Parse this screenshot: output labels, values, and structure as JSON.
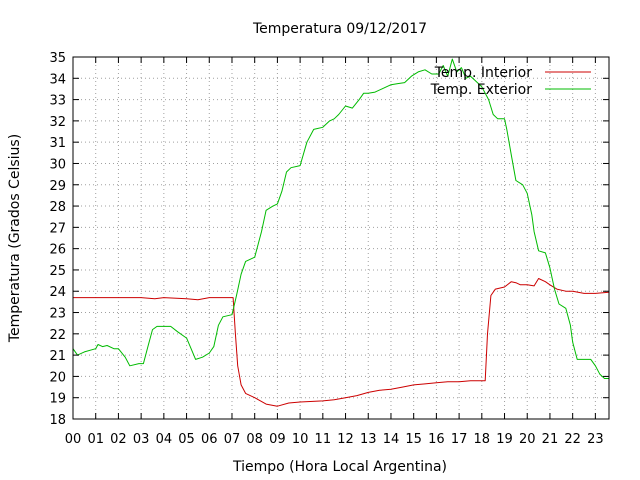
{
  "chart_data": {
    "type": "line",
    "title": "Temperatura 09/12/2017",
    "xlabel": "Tiempo (Hora Local Argentina)",
    "ylabel": "Temperatura (Grados Celsius)",
    "xlim": [
      0,
      23.6
    ],
    "ylim": [
      18,
      35
    ],
    "x_ticks": [
      "00",
      "01",
      "02",
      "03",
      "04",
      "05",
      "06",
      "07",
      "08",
      "09",
      "10",
      "11",
      "12",
      "13",
      "14",
      "15",
      "16",
      "17",
      "18",
      "19",
      "20",
      "21",
      "22",
      "23"
    ],
    "y_ticks": [
      18,
      19,
      20,
      21,
      22,
      23,
      24,
      25,
      26,
      27,
      28,
      29,
      30,
      31,
      32,
      33,
      34,
      35
    ],
    "grid": true,
    "legend_position": "top-right",
    "series": [
      {
        "name": "Temp. Interior",
        "color": "#cc0000",
        "points": [
          [
            0,
            23.7
          ],
          [
            1,
            23.7
          ],
          [
            2,
            23.7
          ],
          [
            3,
            23.7
          ],
          [
            3.6,
            23.65
          ],
          [
            4,
            23.7
          ],
          [
            5,
            23.65
          ],
          [
            5.5,
            23.6
          ],
          [
            6,
            23.7
          ],
          [
            6.5,
            23.7
          ],
          [
            7.05,
            23.7
          ],
          [
            7.15,
            22.0
          ],
          [
            7.25,
            20.5
          ],
          [
            7.4,
            19.6
          ],
          [
            7.6,
            19.2
          ],
          [
            8,
            19.0
          ],
          [
            8.5,
            18.7
          ],
          [
            9,
            18.6
          ],
          [
            9.5,
            18.75
          ],
          [
            10,
            18.8
          ],
          [
            11,
            18.85
          ],
          [
            11.5,
            18.9
          ],
          [
            12,
            19.0
          ],
          [
            12.5,
            19.1
          ],
          [
            13,
            19.25
          ],
          [
            13.5,
            19.35
          ],
          [
            14,
            19.4
          ],
          [
            14.5,
            19.5
          ],
          [
            15,
            19.6
          ],
          [
            15.5,
            19.65
          ],
          [
            16,
            19.7
          ],
          [
            16.5,
            19.75
          ],
          [
            17,
            19.75
          ],
          [
            17.5,
            19.8
          ],
          [
            18,
            19.8
          ],
          [
            18.15,
            19.8
          ],
          [
            18.25,
            22.0
          ],
          [
            18.4,
            23.8
          ],
          [
            18.6,
            24.1
          ],
          [
            19,
            24.2
          ],
          [
            19.3,
            24.45
          ],
          [
            19.5,
            24.4
          ],
          [
            19.7,
            24.3
          ],
          [
            20,
            24.3
          ],
          [
            20.3,
            24.25
          ],
          [
            20.5,
            24.6
          ],
          [
            20.8,
            24.45
          ],
          [
            21,
            24.3
          ],
          [
            21.3,
            24.1
          ],
          [
            21.7,
            24.0
          ],
          [
            22,
            24.0
          ],
          [
            22.5,
            23.9
          ],
          [
            23,
            23.9
          ],
          [
            23.6,
            23.95
          ]
        ]
      },
      {
        "name": "Temp. Exterior",
        "color": "#00bb00",
        "points": [
          [
            0,
            21.3
          ],
          [
            0.2,
            21.0
          ],
          [
            0.5,
            21.15
          ],
          [
            1,
            21.3
          ],
          [
            1.1,
            21.5
          ],
          [
            1.3,
            21.4
          ],
          [
            1.5,
            21.45
          ],
          [
            1.8,
            21.3
          ],
          [
            2,
            21.3
          ],
          [
            2.3,
            20.9
          ],
          [
            2.5,
            20.5
          ],
          [
            2.9,
            20.6
          ],
          [
            3.1,
            20.6
          ],
          [
            3.3,
            21.4
          ],
          [
            3.5,
            22.2
          ],
          [
            3.7,
            22.35
          ],
          [
            4,
            22.35
          ],
          [
            4.3,
            22.35
          ],
          [
            4.6,
            22.1
          ],
          [
            5,
            21.8
          ],
          [
            5.2,
            21.3
          ],
          [
            5.4,
            20.8
          ],
          [
            5.7,
            20.9
          ],
          [
            6,
            21.1
          ],
          [
            6.2,
            21.4
          ],
          [
            6.4,
            22.4
          ],
          [
            6.6,
            22.8
          ],
          [
            7,
            22.9
          ],
          [
            7.2,
            23.8
          ],
          [
            7.4,
            24.8
          ],
          [
            7.6,
            25.4
          ],
          [
            8,
            25.6
          ],
          [
            8.3,
            26.8
          ],
          [
            8.5,
            27.8
          ],
          [
            8.8,
            28.0
          ],
          [
            9,
            28.1
          ],
          [
            9.2,
            28.7
          ],
          [
            9.4,
            29.6
          ],
          [
            9.6,
            29.8
          ],
          [
            10,
            29.9
          ],
          [
            10.3,
            31.0
          ],
          [
            10.6,
            31.6
          ],
          [
            11,
            31.7
          ],
          [
            11.3,
            32.0
          ],
          [
            11.5,
            32.1
          ],
          [
            11.7,
            32.3
          ],
          [
            12,
            32.7
          ],
          [
            12.3,
            32.6
          ],
          [
            12.6,
            33.0
          ],
          [
            12.8,
            33.3
          ],
          [
            13,
            33.3
          ],
          [
            13.3,
            33.35
          ],
          [
            13.6,
            33.5
          ],
          [
            14,
            33.7
          ],
          [
            14.3,
            33.75
          ],
          [
            14.6,
            33.8
          ],
          [
            14.9,
            34.1
          ],
          [
            15.2,
            34.3
          ],
          [
            15.5,
            34.4
          ],
          [
            15.8,
            34.2
          ],
          [
            16.1,
            34.2
          ],
          [
            16.3,
            34.6
          ],
          [
            16.5,
            34.1
          ],
          [
            16.7,
            34.9
          ],
          [
            16.9,
            34.3
          ],
          [
            17.1,
            34.5
          ],
          [
            17.3,
            34.0
          ],
          [
            17.5,
            34.1
          ],
          [
            17.7,
            33.9
          ],
          [
            18,
            33.6
          ],
          [
            18.3,
            33.0
          ],
          [
            18.5,
            32.3
          ],
          [
            18.7,
            32.1
          ],
          [
            19,
            32.1
          ],
          [
            19.1,
            31.6
          ],
          [
            19.3,
            30.4
          ],
          [
            19.5,
            29.2
          ],
          [
            19.8,
            29.0
          ],
          [
            20,
            28.6
          ],
          [
            20.2,
            27.6
          ],
          [
            20.3,
            26.8
          ],
          [
            20.5,
            25.9
          ],
          [
            20.8,
            25.8
          ],
          [
            21,
            25.1
          ],
          [
            21.2,
            24.1
          ],
          [
            21.4,
            23.4
          ],
          [
            21.7,
            23.2
          ],
          [
            21.9,
            22.4
          ],
          [
            22,
            21.6
          ],
          [
            22.2,
            20.8
          ],
          [
            22.5,
            20.8
          ],
          [
            22.8,
            20.8
          ],
          [
            23,
            20.5
          ],
          [
            23.2,
            20.1
          ],
          [
            23.4,
            19.9
          ],
          [
            23.6,
            19.9
          ]
        ]
      }
    ]
  }
}
